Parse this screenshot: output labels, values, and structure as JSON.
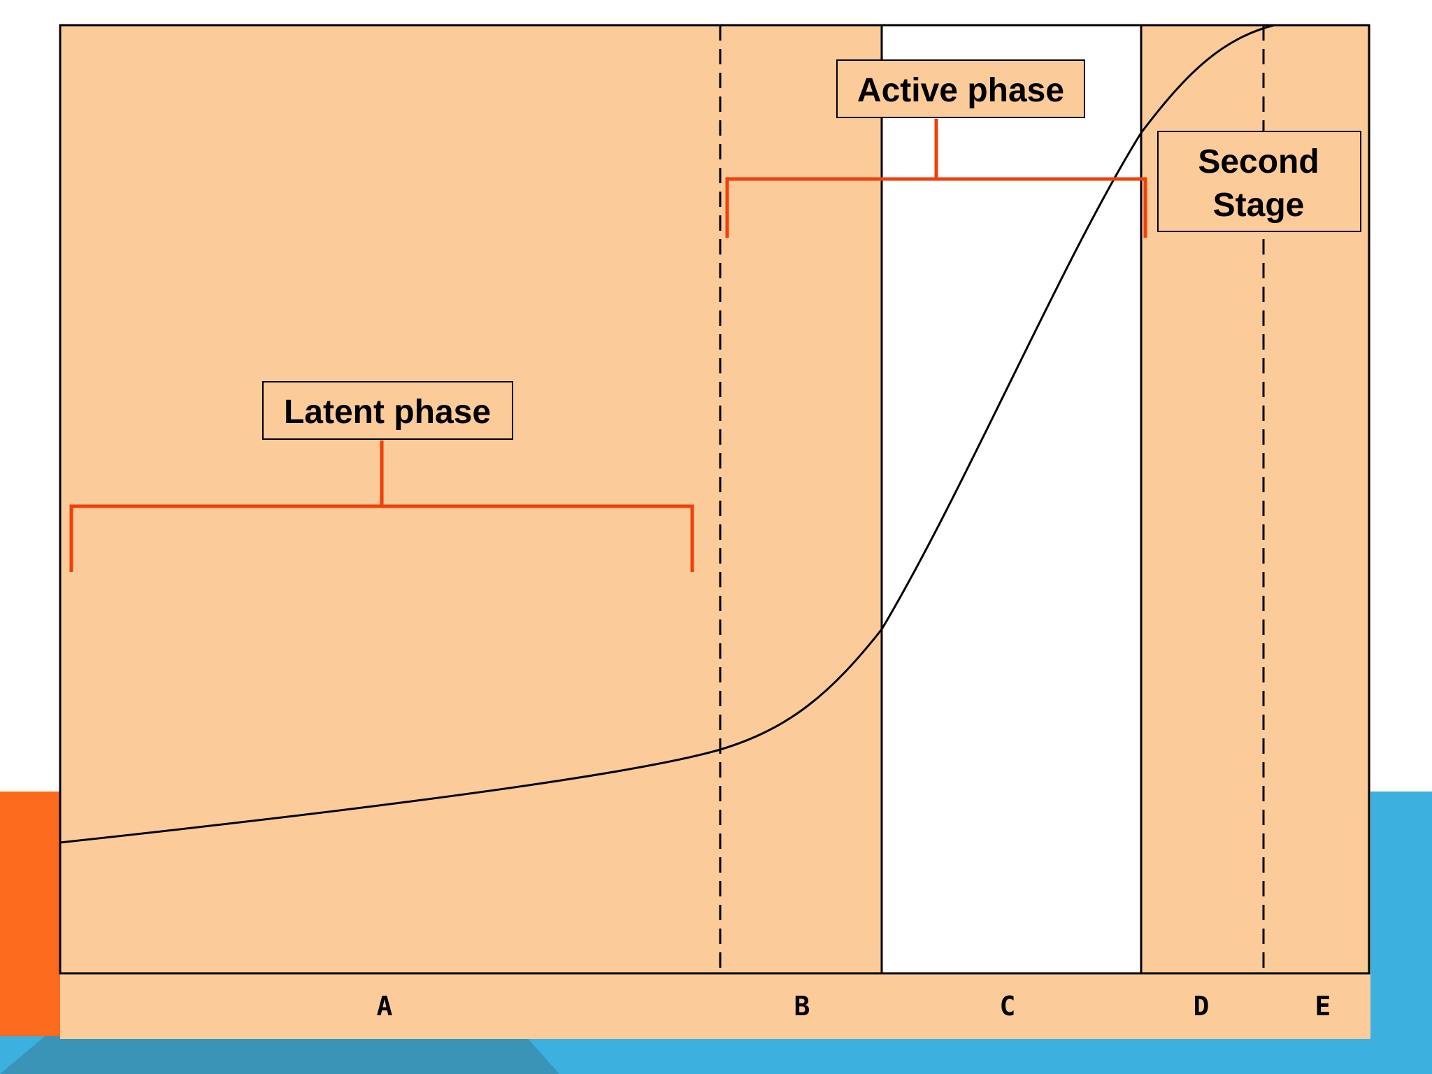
{
  "colors": {
    "panel_fill": "#FCCB9A",
    "white_band": "#FFFFFF",
    "bracket": "#F0400C",
    "curve": "#000000",
    "deco_orange": "#FC6A1E",
    "deco_blue": "#3CB0DE",
    "deco_dark_blue": "#3A94B8"
  },
  "callouts": {
    "latent": "Latent phase",
    "active": "Active phase",
    "second_stage_line1": "Second",
    "second_stage_line2": "Stage"
  },
  "segments": [
    "A",
    "B",
    "C",
    "D",
    "E"
  ]
}
